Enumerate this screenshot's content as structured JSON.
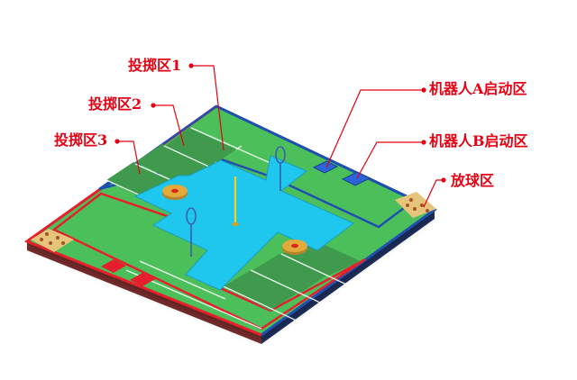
{
  "labels": {
    "throw_zone_1": "投掷区1",
    "throw_zone_2": "投掷区2",
    "throw_zone_3": "投掷区3",
    "robot_a_start": "机器人A启动区",
    "robot_b_start": "机器人B启动区",
    "ball_zone": "放球区"
  },
  "colors": {
    "label_red": "#e60012",
    "leader_red": "#e60012",
    "field_green": "#4cc05a",
    "throw_green": "#3f9a4e",
    "water_cyan": "#1fc6ee",
    "team_blue": "#1f4fb0",
    "team_red": "#e5202c",
    "ball_zone_tan": "#e6c57a",
    "pole_yellow": "#f5d020",
    "ring_blue": "#3a5fa8",
    "target_gold": "#e3a93a",
    "target_red": "#d7281e"
  }
}
